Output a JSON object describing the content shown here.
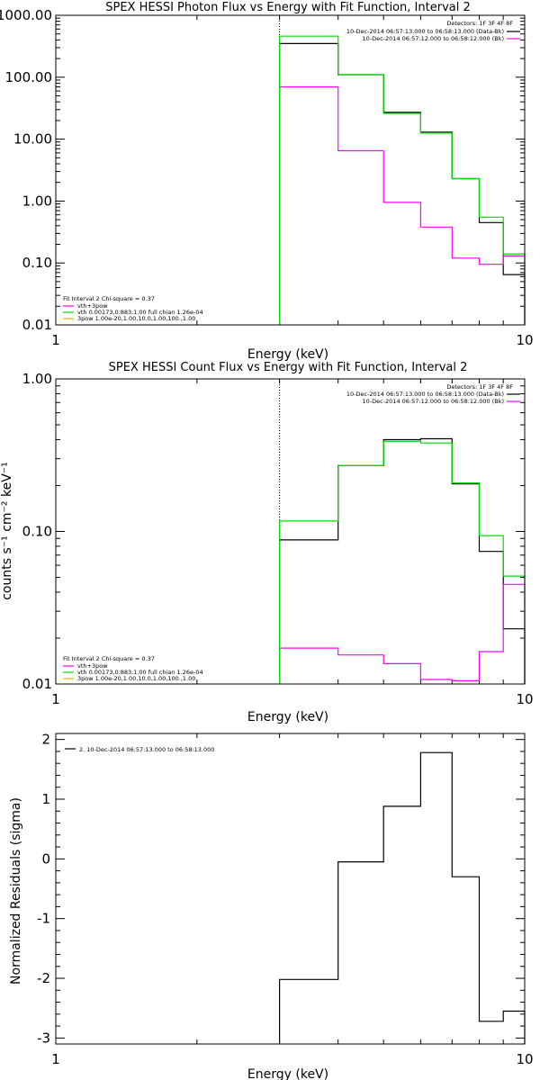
{
  "colors": {
    "data": "#000000",
    "vth_plus_3pow": "#ff00ff",
    "vth": "#00dd00",
    "pow3": "#ffaa00",
    "background_curve": "#ff00ff"
  },
  "chart_data": [
    {
      "type": "line",
      "title": "SPEX HESSI Photon Flux vs Energy with Fit Function, Interval 2",
      "xlabel": "Energy (keV)",
      "ylabel": "",
      "xscale": "log",
      "yscale": "log",
      "xlim": [
        1,
        10
      ],
      "ylim": [
        0.01,
        1000
      ],
      "xtick_labels": [
        "1",
        "10"
      ],
      "ytick_labels": [
        "0.01",
        "0.10",
        "1.00",
        "10.00",
        "100.00",
        "1000.00"
      ],
      "marker_line_x": 3,
      "bin_edges": [
        3.0,
        4.0,
        5.0,
        6.0,
        7.0,
        8.0,
        9.0,
        10.0
      ],
      "legend_right": [
        "Detectors: 1F 3F 4F 8F",
        "10-Dec-2014 06:57:13.000 to 06:58:13.000 (Data-Bk)",
        "10-Dec-2014 06:57:12.000 to 06:58:12.000 (Bk)"
      ],
      "legend_left": [
        "Fit Interval 2   Chi-square = 0.37",
        "vth+3pow",
        "vth 0.00173,0.883,1.00  full chian 1.26e-04",
        "3pow 1.00e-20,1.00,10.0,1.00,100.,1.00"
      ],
      "series": [
        {
          "name": "10-Dec-2014 06:57:13.000 to 06:58:13.000 (Data-Bk)",
          "color_key": "data",
          "values": [
            350,
            110,
            27,
            13,
            2.3,
            0.45,
            0.065
          ]
        },
        {
          "name": "10-Dec-2014 06:57:12.000 to 06:58:12.000 (Bk)",
          "color_key": "background_curve",
          "values": [
            70,
            6.5,
            0.95,
            0.38,
            0.12,
            0.095,
            0.13
          ]
        },
        {
          "name": "vth+3pow",
          "color_key": "vth",
          "values": [
            460,
            110,
            26,
            12.5,
            2.3,
            0.55,
            0.14
          ]
        }
      ]
    },
    {
      "type": "line",
      "title": "SPEX HESSI Count Flux vs Energy with Fit Function, Interval 2",
      "xlabel": "Energy (keV)",
      "ylabel": "counts s⁻¹ cm⁻² keV⁻¹",
      "xscale": "log",
      "yscale": "log",
      "xlim": [
        1,
        10
      ],
      "ylim": [
        0.01,
        1.0
      ],
      "xtick_labels": [
        "1",
        "10"
      ],
      "ytick_labels": [
        "0.01",
        "0.10",
        "1.00"
      ],
      "marker_line_x": 3,
      "bin_edges": [
        3.0,
        4.0,
        5.0,
        6.0,
        7.0,
        8.0,
        9.0,
        10.0
      ],
      "legend_right": [
        "Detectors: 1F 3F 4F 8F",
        "10-Dec-2014 06:57:13.000 to 06:58:13.000 (Data-Bk)",
        "10-Dec-2014 06:57:12.000 to 06:58:12.000 (Bk)"
      ],
      "legend_left": [
        "Fit Interval 2   Chi-square = 0.37",
        "vth+3pow",
        "vth 0.00173,0.883,1.00  full chian 1.26e-04",
        "3pow 1.00e-20,1.00,10.0,1.00,100.,1.00"
      ],
      "series": [
        {
          "name": "10-Dec-2014 06:57:13.000 to 06:58:13.000 (Data-Bk)",
          "color_key": "data",
          "values": [
            0.088,
            0.27,
            0.4,
            0.405,
            0.205,
            0.074,
            0.023
          ]
        },
        {
          "name": "10-Dec-2014 06:57:12.000 to 06:58:12.000 (Bk)",
          "color_key": "background_curve",
          "values": [
            0.0172,
            0.0155,
            0.0136,
            0.0107,
            0.0105,
            0.0163,
            0.045
          ]
        },
        {
          "name": "vth+3pow",
          "color_key": "vth",
          "values": [
            0.117,
            0.27,
            0.39,
            0.38,
            0.208,
            0.094,
            0.051
          ]
        }
      ]
    },
    {
      "type": "line",
      "title": "",
      "xlabel": "Energy (keV)",
      "ylabel": "Normalized Residuals (sigma)",
      "xscale": "log",
      "yscale": "linear",
      "xlim": [
        1,
        10
      ],
      "ylim": [
        -3.1,
        2.1
      ],
      "xtick_labels": [
        "1",
        "10"
      ],
      "ytick_labels": [
        "-3",
        "-2",
        "-1",
        "0",
        "1",
        "2"
      ],
      "legend": [
        "2. 10-Dec-2014 06:57:13.000 to 06:58:13.000"
      ],
      "bin_edges": [
        3.0,
        4.0,
        5.0,
        6.0,
        7.0,
        8.0,
        9.0,
        10.0
      ],
      "series": [
        {
          "name": "2. 10-Dec-2014 06:57:13.000 to 06:58:13.000",
          "color_key": "data",
          "values": [
            -2.02,
            -0.05,
            0.88,
            1.78,
            -0.3,
            -2.72,
            -2.55
          ]
        }
      ]
    }
  ]
}
